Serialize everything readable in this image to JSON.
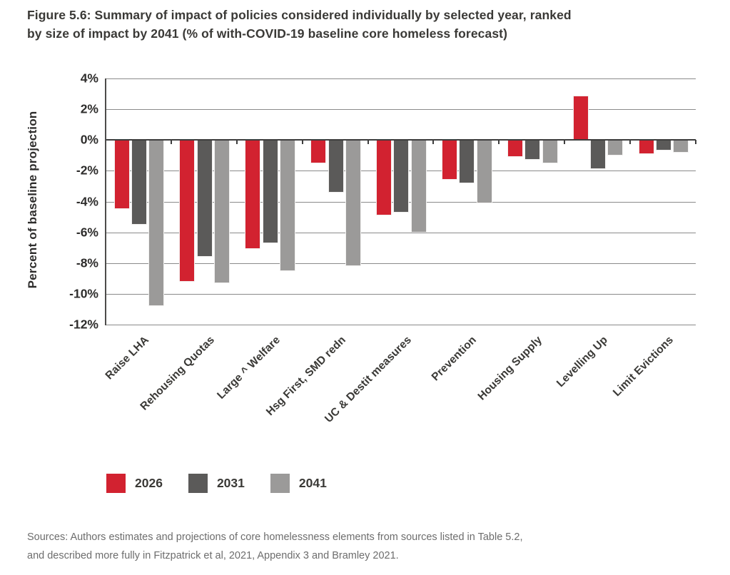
{
  "title_lines": [
    "Figure 5.6: Summary of impact of policies considered individually by selected year, ranked",
    "by size of impact by 2041 (% of with-COVID-19 baseline core homeless forecast)"
  ],
  "y_axis": {
    "title": "Percent of baseline projection",
    "ticks": [
      "4%",
      "2%",
      "0%",
      "-2%",
      "-4%",
      "-6%",
      "-8%",
      "-10%",
      "-12%"
    ]
  },
  "legend": {
    "items": [
      "2026",
      "2031",
      "2041"
    ]
  },
  "sources_lines": [
    "Sources: Authors estimates and projections of core homelessness elements from sources listed in Table 5.2,",
    "and described more fully in Fitzpatrick et al, 2021, Appendix 3 and Bramley 2021."
  ],
  "chart_data": {
    "type": "bar",
    "title": "Figure 5.6: Summary of impact of policies considered individually by selected year, ranked by size of impact by 2041 (% of with-COVID-19 baseline core homeless forecast)",
    "categories": [
      "Raise LHA",
      "Rehousing Quotas",
      "Large ^ Welfare",
      "Hsg First, SMD redn",
      "UC & Destit measures",
      "Prevention",
      "Housing Supply",
      "Levelling Up",
      "Limit Evictions"
    ],
    "series": [
      {
        "name": "2026",
        "color": "#d22230",
        "values": [
          -4.5,
          -9.2,
          -7.1,
          -1.5,
          -4.9,
          -2.6,
          -1.1,
          2.9,
          -0.9
        ]
      },
      {
        "name": "2031",
        "color": "#5b5a59",
        "values": [
          -5.5,
          -7.6,
          -6.7,
          -3.4,
          -4.7,
          -2.8,
          -1.3,
          -1.9,
          -0.7
        ]
      },
      {
        "name": "2041",
        "color": "#9b9a99",
        "values": [
          -10.8,
          -9.3,
          -8.5,
          -8.2,
          -6.0,
          -4.1,
          -1.5,
          -1.0,
          -0.8
        ]
      }
    ],
    "xlabel": "",
    "ylabel": "Percent of baseline projection",
    "ylim": [
      -12,
      4
    ],
    "ytick_step": 2,
    "grid": true,
    "legend_position": "bottom",
    "value_unit": "%"
  }
}
